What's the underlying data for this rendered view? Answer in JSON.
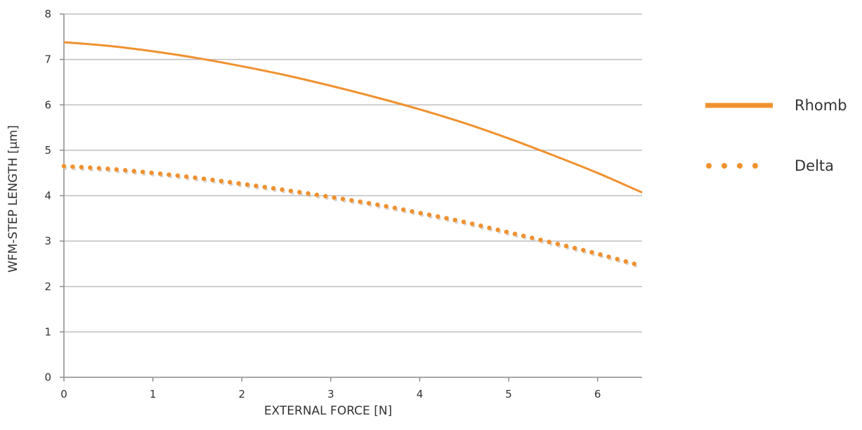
{
  "chart_data": {
    "type": "line",
    "title": "",
    "xlabel": "EXTERNAL FORCE [N]",
    "ylabel": "WFM-STEP LENGTH [µm]",
    "xlim": [
      0,
      6.5
    ],
    "ylim": [
      0,
      8
    ],
    "x_ticks": [
      "0",
      "1",
      "2",
      "3",
      "4",
      "5",
      "6"
    ],
    "y_ticks": [
      "0",
      "1",
      "2",
      "3",
      "4",
      "5",
      "6",
      "7",
      "8"
    ],
    "grid": "horizontal",
    "legend_position": "right",
    "series": [
      {
        "name": "Rhomb",
        "style": "solid",
        "color": "#F0912F",
        "x": [
          0,
          0.5,
          1,
          1.5,
          2,
          2.5,
          3,
          3.5,
          4,
          4.5,
          5,
          5.5,
          6,
          6.5
        ],
        "y": [
          7.38,
          7.3,
          7.18,
          7.03,
          6.85,
          6.65,
          6.42,
          6.17,
          5.9,
          5.6,
          5.26,
          4.89,
          4.5,
          4.07
        ]
      },
      {
        "name": "Delta",
        "style": "dotted",
        "color": "#F0912F",
        "x": [
          0,
          0.5,
          1,
          1.5,
          2,
          2.5,
          3,
          3.5,
          4,
          4.5,
          5,
          5.5,
          6,
          6.5
        ],
        "y": [
          4.65,
          4.59,
          4.5,
          4.39,
          4.26,
          4.12,
          3.97,
          3.81,
          3.62,
          3.42,
          3.19,
          2.96,
          2.72,
          2.45
        ]
      }
    ]
  }
}
